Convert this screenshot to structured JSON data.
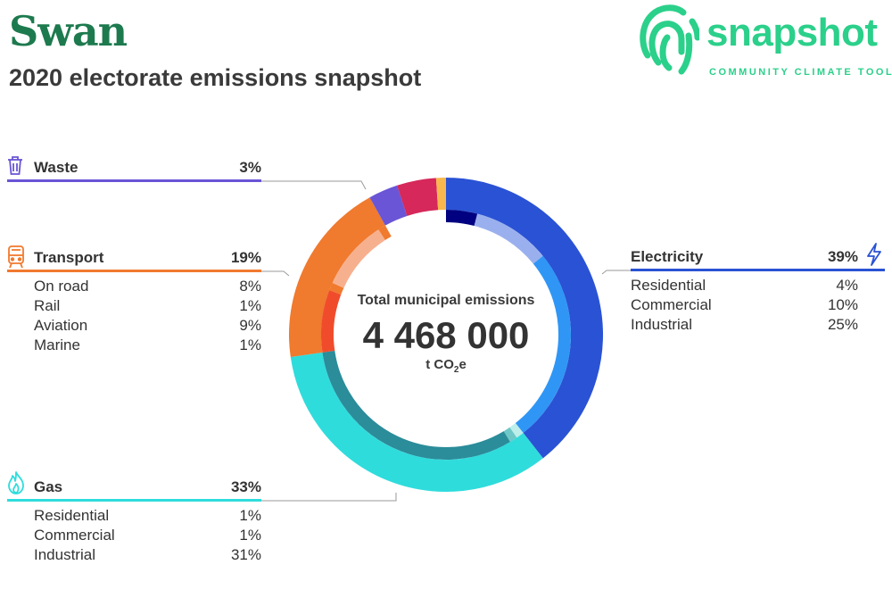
{
  "header": {
    "title": "Swan",
    "subtitle": "2020 electorate emissions snapshot"
  },
  "logo": {
    "word": "snapshot",
    "tagline": "COMMUNITY CLIMATE TOOL",
    "icon": "fingerprint-icon",
    "color": "#2bd08a"
  },
  "center": {
    "label": "Total municipal emissions",
    "value": "4 468 000",
    "unit_prefix": "t CO",
    "unit_sub": "2",
    "unit_suffix": "e"
  },
  "chart_data": {
    "type": "pie",
    "style": "donut with inner sub-category ring",
    "total": 4468000,
    "unit": "t CO2e",
    "order": "clockwise from top",
    "categories": [
      {
        "key": "electricity",
        "name": "Electricity",
        "percent": 39,
        "percent_label": "39%",
        "color": "#2a52d4",
        "icon": "lightning-icon",
        "items": [
          {
            "name": "Residential",
            "percent": 4,
            "label": "4%",
            "color": "#000080"
          },
          {
            "name": "Commercial",
            "percent": 10,
            "label": "10%",
            "color": "#9ab0ee"
          },
          {
            "name": "Industrial",
            "percent": 25,
            "label": "25%",
            "color": "#2f96f5"
          }
        ]
      },
      {
        "key": "gas",
        "name": "Gas",
        "percent": 33,
        "percent_label": "33%",
        "color": "#2fdcdc",
        "icon": "flame-icon",
        "items": [
          {
            "name": "Residential",
            "percent": 1,
            "label": "1%",
            "color": "#bdeeea"
          },
          {
            "name": "Commercial",
            "percent": 1,
            "label": "1%",
            "color": "#6ec8c8"
          },
          {
            "name": "Industrial",
            "percent": 31,
            "label": "31%",
            "color": "#2b8c9a"
          }
        ]
      },
      {
        "key": "transport",
        "name": "Transport",
        "percent": 19,
        "percent_label": "19%",
        "color": "#f07a2e",
        "icon": "train-icon",
        "items": [
          {
            "name": "On road",
            "percent": 8,
            "label": "8%",
            "color": "#f04c2c"
          },
          {
            "name": "Rail",
            "percent": 1,
            "label": "1%",
            "color": "#f07a2e"
          },
          {
            "name": "Aviation",
            "percent": 9,
            "label": "9%",
            "color": "#f7b08e"
          },
          {
            "name": "Marine",
            "percent": 1,
            "label": "1%",
            "color": "#f07a2e"
          }
        ]
      },
      {
        "key": "waste",
        "name": "Waste",
        "percent": 3,
        "percent_label": "3%",
        "color": "#6a55d6",
        "icon": "trash-icon",
        "items": []
      },
      {
        "key": "other",
        "name": "",
        "percent": 4,
        "percent_label": "",
        "color": "#d6285a",
        "icon": "",
        "items": []
      },
      {
        "key": "other2",
        "name": "",
        "percent": 1,
        "percent_label": "",
        "color": "#f8b84e",
        "icon": "",
        "items": []
      }
    ]
  }
}
